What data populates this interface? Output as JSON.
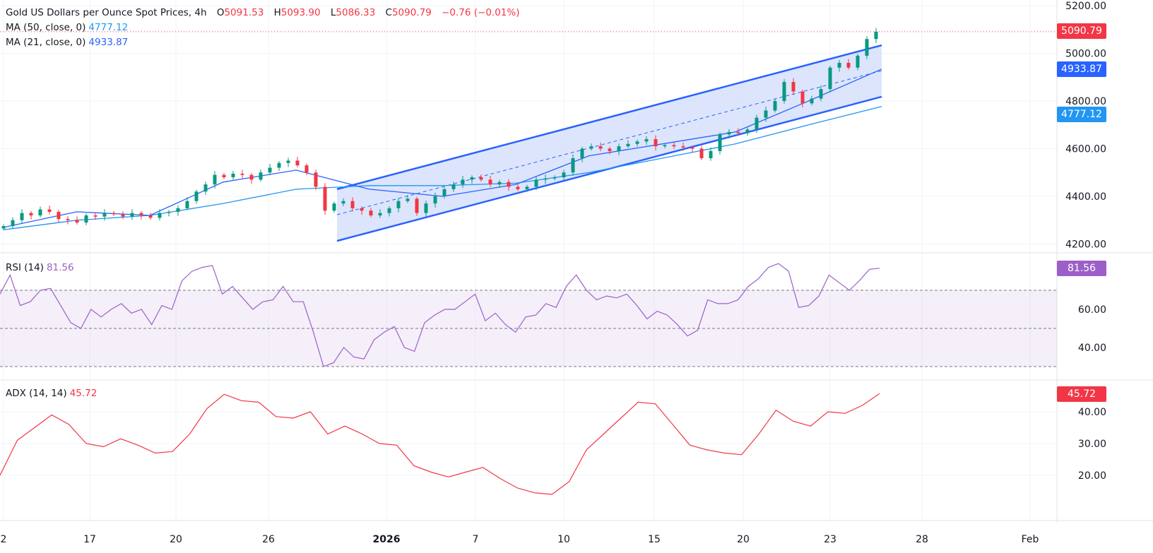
{
  "header": {
    "title": "Gold US Dollars per Ounce Spot Prices, 4h",
    "o_label": "O",
    "o": "5091.53",
    "h_label": "H",
    "h": "5093.90",
    "l_label": "L",
    "l": "5086.33",
    "c_label": "C",
    "c": "5090.79",
    "change": "−0.76 (−0.01%)"
  },
  "ma50": {
    "label": "MA (50, close, 0)",
    "value": "4777.12",
    "color": "#2196f3"
  },
  "ma21": {
    "label": "MA (21, close, 0)",
    "value": "4933.87",
    "color": "#2962ff"
  },
  "rsi": {
    "label": "RSI (14)",
    "value": "81.56",
    "color": "#9c5fc9"
  },
  "adx": {
    "label": "ADX (14, 14)",
    "value": "45.72",
    "color": "#f23645"
  },
  "last_price": "5090.79",
  "colors": {
    "up": "#089981",
    "down": "#f23645",
    "channel": "#2962ff",
    "channel_fill": "#d6e0fb"
  },
  "chart_data": [
    {
      "type": "candlestick",
      "ylim": [
        4100,
        5230
      ],
      "yticks": [
        "5200.00",
        "5000.00",
        "4800.00",
        "4600.00",
        "4400.00",
        "4200.00"
      ],
      "ytick_values": [
        5200,
        5000,
        4800,
        4600,
        4400,
        4200
      ],
      "xticks": [
        "2",
        "17",
        "20",
        "26",
        "2026",
        "7",
        "10",
        "15",
        "20",
        "23",
        "28",
        "Feb"
      ],
      "closes": [
        4275,
        4300,
        4330,
        4320,
        4345,
        4335,
        4305,
        4300,
        4290,
        4320,
        4315,
        4330,
        4325,
        4315,
        4330,
        4320,
        4310,
        4330,
        4335,
        4350,
        4380,
        4420,
        4450,
        4490,
        4480,
        4495,
        4490,
        4470,
        4500,
        4520,
        4540,
        4550,
        4530,
        4500,
        4440,
        4340,
        4370,
        4380,
        4350,
        4340,
        4320,
        4330,
        4350,
        4380,
        4390,
        4330,
        4370,
        4400,
        4430,
        4450,
        4470,
        4480,
        4470,
        4450,
        4460,
        4440,
        4430,
        4440,
        4470,
        4475,
        4480,
        4500,
        4560,
        4600,
        4610,
        4600,
        4590,
        4610,
        4620,
        4630,
        4640,
        4610,
        4615,
        4610,
        4605,
        4600,
        4560,
        4590,
        4660,
        4670,
        4665,
        4680,
        4730,
        4760,
        4800,
        4880,
        4840,
        4790,
        4810,
        4850,
        4940,
        4960,
        4940,
        4990,
        5060,
        5090.79
      ],
      "ma21": [
        4270,
        4335,
        4320,
        4460,
        4510,
        4430,
        4400,
        4450,
        4570,
        4620,
        4670,
        4800,
        4933.87
      ],
      "ma50": [
        4260,
        4300,
        4320,
        4370,
        4430,
        4445,
        4445,
        4455,
        4500,
        4560,
        4620,
        4700,
        4777.12
      ],
      "channel": {
        "upper": [
          4430,
          5034
        ],
        "mid": [
          4323,
          4927
        ],
        "lower": [
          4213,
          4818
        ]
      }
    },
    {
      "type": "line",
      "name": "RSI (14)",
      "ylim": [
        25,
        90
      ],
      "yticks": [
        "60.00",
        "40.00"
      ],
      "levels": [
        70,
        50,
        30
      ],
      "values": [
        68,
        78,
        62,
        64,
        70,
        71,
        62,
        53,
        50,
        60,
        56,
        60,
        63,
        58,
        60,
        52,
        62,
        60,
        75,
        80,
        82,
        83,
        68,
        72,
        66,
        60,
        64,
        65,
        72,
        64,
        64,
        48,
        30,
        32,
        40,
        35,
        34,
        44,
        48,
        51,
        40,
        38,
        53,
        57,
        60,
        60,
        64,
        68,
        54,
        58,
        52,
        48,
        56,
        57,
        63,
        61,
        72,
        78,
        70,
        65,
        67,
        66,
        68,
        62,
        55,
        59,
        57,
        52,
        46,
        49,
        65,
        63,
        63,
        65,
        72,
        76,
        82,
        84,
        80,
        61,
        62,
        67,
        78,
        74,
        70,
        75,
        81,
        81.56
      ]
    },
    {
      "type": "line",
      "name": "ADX (14, 14)",
      "ylim": [
        10,
        50
      ],
      "yticks": [
        "40.00",
        "30.00",
        "20.00"
      ],
      "values": [
        20,
        31,
        35,
        39,
        36,
        30,
        29,
        31.5,
        29.5,
        27,
        27.5,
        33,
        41,
        45.5,
        43.5,
        43,
        38.5,
        38,
        40,
        33,
        35.5,
        33,
        30,
        29.5,
        23,
        21,
        19.5,
        21,
        22.5,
        19,
        16,
        14.5,
        14,
        18,
        28,
        33,
        38,
        43,
        42.5,
        36,
        29.5,
        28,
        27,
        26.5,
        33,
        40.5,
        37,
        35.5,
        40,
        39.5,
        42,
        45.72
      ]
    }
  ]
}
